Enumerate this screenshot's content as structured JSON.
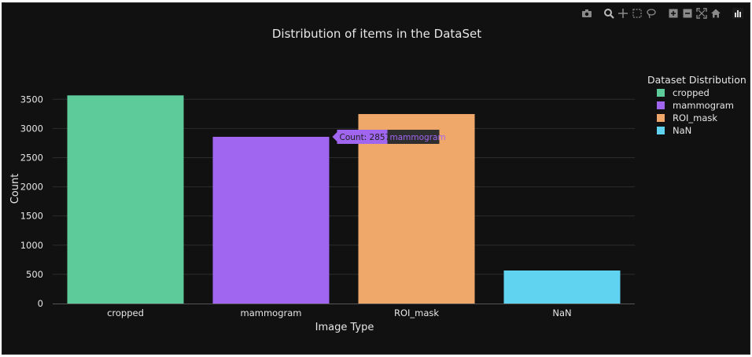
{
  "toolbar": {
    "icons": [
      "camera-icon",
      "zoom-icon",
      "pan-icon",
      "box-select-icon",
      "lasso-icon",
      "zoom-in-icon",
      "zoom-out-icon",
      "autoscale-icon",
      "home-icon",
      "plotly-logo-icon"
    ]
  },
  "chart_data": {
    "type": "bar",
    "title": "Distribution of items in the DataSet",
    "xlabel": "Image Type",
    "ylabel": "Count",
    "categories": [
      "cropped",
      "mammogram",
      "ROI_mask",
      "NaN"
    ],
    "values": [
      3567,
      2857,
      3247,
      566
    ],
    "colors": [
      "#5ecb9a",
      "#a066f0",
      "#f0a86a",
      "#5fd3ef"
    ],
    "ylim": [
      0,
      3800
    ],
    "yticks": [
      0,
      500,
      1000,
      1500,
      2000,
      2500,
      3000,
      3500
    ],
    "grid": true,
    "legend": {
      "title": "Dataset Distribution",
      "placement": "top-right",
      "entries": [
        "cropped",
        "mammogram",
        "ROI_mask",
        "NaN"
      ]
    },
    "hover": {
      "category": "mammogram",
      "label": "Count: 2857",
      "name": "mammogram"
    }
  },
  "colors": {
    "background": "#111111",
    "grid": "#2c2c2c",
    "text": "#e6e6e6"
  }
}
